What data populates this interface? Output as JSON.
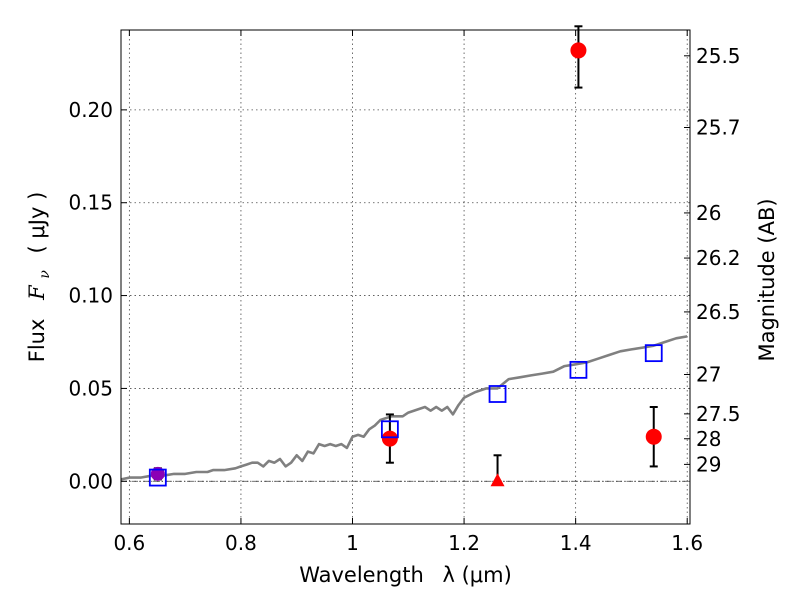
{
  "chart_data": {
    "type": "scatter",
    "xlabel": "Wavelength",
    "xlabel_math": "λ (μm)",
    "ylabel": "Flux",
    "ylabel_math": "F",
    "ylabel_sub": "ν",
    "ylabel_unit": "( μJy )",
    "y2label": "Magnitude (AB)",
    "xlim": [
      0.585,
      1.605
    ],
    "ylim": [
      -0.023,
      0.243
    ],
    "x_ticks": [
      0.6,
      0.8,
      1.0,
      1.2,
      1.4,
      1.6
    ],
    "x_tick_labels": [
      "0.6",
      "0.8",
      "1",
      "1.2",
      "1.4",
      "1.6"
    ],
    "y_ticks": [
      0.0,
      0.05,
      0.1,
      0.15,
      0.2
    ],
    "y_tick_labels": [
      "0.00",
      "0.05",
      "0.10",
      "0.15",
      "0.20"
    ],
    "y2_ticks": [
      {
        "label": "25.5",
        "flux": 0.2291
      },
      {
        "label": "25.7",
        "flux": 0.1905
      },
      {
        "label": "26",
        "flux": 0.1445
      },
      {
        "label": "26.2",
        "flux": 0.1202
      },
      {
        "label": "26.5",
        "flux": 0.0912
      },
      {
        "label": "27",
        "flux": 0.0575
      },
      {
        "label": "27.5",
        "flux": 0.0363
      },
      {
        "label": "28",
        "flux": 0.0229
      },
      {
        "label": "29",
        "flux": 0.0091
      }
    ],
    "grid": true,
    "zero_line": 0.0,
    "model_spectrum": {
      "color": "#808080",
      "x": [
        0.585,
        0.6,
        0.62,
        0.64,
        0.66,
        0.68,
        0.7,
        0.72,
        0.74,
        0.75,
        0.77,
        0.79,
        0.8,
        0.81,
        0.82,
        0.83,
        0.84,
        0.85,
        0.86,
        0.87,
        0.88,
        0.89,
        0.9,
        0.91,
        0.92,
        0.93,
        0.94,
        0.95,
        0.96,
        0.97,
        0.98,
        0.99,
        1.0,
        1.01,
        1.02,
        1.03,
        1.04,
        1.05,
        1.07,
        1.09,
        1.1,
        1.12,
        1.13,
        1.14,
        1.15,
        1.16,
        1.17,
        1.18,
        1.19,
        1.2,
        1.22,
        1.24,
        1.26,
        1.28,
        1.3,
        1.32,
        1.34,
        1.36,
        1.38,
        1.4,
        1.42,
        1.44,
        1.46,
        1.48,
        1.5,
        1.52,
        1.54,
        1.56,
        1.58,
        1.6
      ],
      "y": [
        0.001,
        0.002,
        0.002,
        0.003,
        0.003,
        0.004,
        0.004,
        0.005,
        0.005,
        0.006,
        0.006,
        0.007,
        0.008,
        0.009,
        0.01,
        0.01,
        0.008,
        0.011,
        0.01,
        0.012,
        0.008,
        0.01,
        0.014,
        0.011,
        0.016,
        0.015,
        0.02,
        0.019,
        0.02,
        0.019,
        0.02,
        0.018,
        0.024,
        0.025,
        0.024,
        0.028,
        0.03,
        0.033,
        0.035,
        0.035,
        0.037,
        0.039,
        0.04,
        0.038,
        0.04,
        0.038,
        0.04,
        0.036,
        0.041,
        0.045,
        0.048,
        0.05,
        0.05,
        0.055,
        0.056,
        0.057,
        0.058,
        0.059,
        0.062,
        0.063,
        0.064,
        0.066,
        0.068,
        0.07,
        0.071,
        0.072,
        0.073,
        0.075,
        0.077,
        0.078
      ]
    },
    "model_photometry": {
      "marker": "open-square",
      "color": "#0000ff",
      "x": [
        0.651,
        1.067,
        1.26,
        1.405,
        1.54
      ],
      "y": [
        0.002,
        0.028,
        0.047,
        0.06,
        0.069
      ]
    },
    "observed": {
      "marker": "circle",
      "color": "#ff0000",
      "points": [
        {
          "x": 1.067,
          "y": 0.023,
          "err_low": 0.013,
          "err_high": 0.013
        },
        {
          "x": 1.405,
          "y": 0.232,
          "err_low": 0.02,
          "err_high": 0.013
        },
        {
          "x": 1.54,
          "y": 0.024,
          "err_low": 0.016,
          "err_high": 0.016
        }
      ]
    },
    "observed_optical": {
      "marker": "circle",
      "color": "#8b00b5",
      "x": 0.651,
      "y": 0.004,
      "err_low": 0.003,
      "err_high": 0.003
    },
    "upper_limit": {
      "marker": "triangle",
      "color": "#ff0000",
      "x": 1.26,
      "y": 0.0,
      "err_high": 0.014
    }
  }
}
